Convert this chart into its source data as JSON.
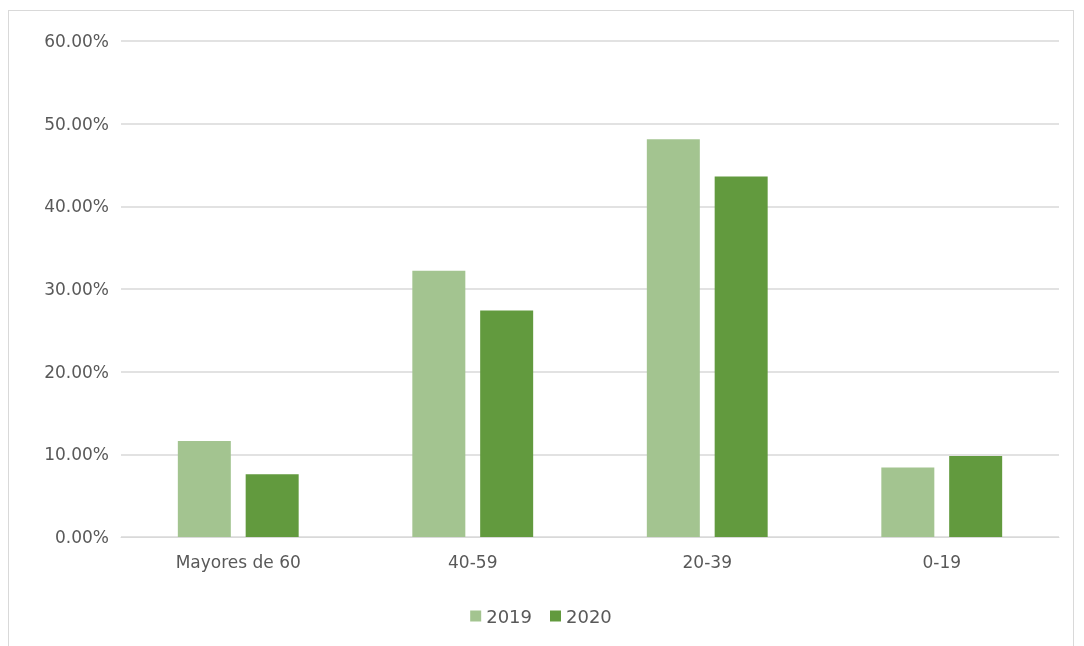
{
  "chart_data": {
    "type": "bar",
    "categories": [
      "Mayores de 60",
      "40-59",
      "20-39",
      "0-19"
    ],
    "series": [
      {
        "name": "2019",
        "color": "#a3c490",
        "values": [
          11.6,
          32.2,
          48.1,
          8.4
        ]
      },
      {
        "name": "2020",
        "color": "#629a3e",
        "values": [
          7.6,
          27.4,
          43.6,
          9.8
        ]
      }
    ],
    "ylim": [
      0,
      60
    ],
    "yticks": [
      {
        "value": 0,
        "label": "0.00%"
      },
      {
        "value": 10,
        "label": "10.00%"
      },
      {
        "value": 20,
        "label": "20.00%"
      },
      {
        "value": 30,
        "label": "30.00%"
      },
      {
        "value": 40,
        "label": "40.00%"
      },
      {
        "value": 50,
        "label": "50.00%"
      },
      {
        "value": 60,
        "label": "60.00%"
      }
    ],
    "grid": "y",
    "legend": "bottom"
  }
}
